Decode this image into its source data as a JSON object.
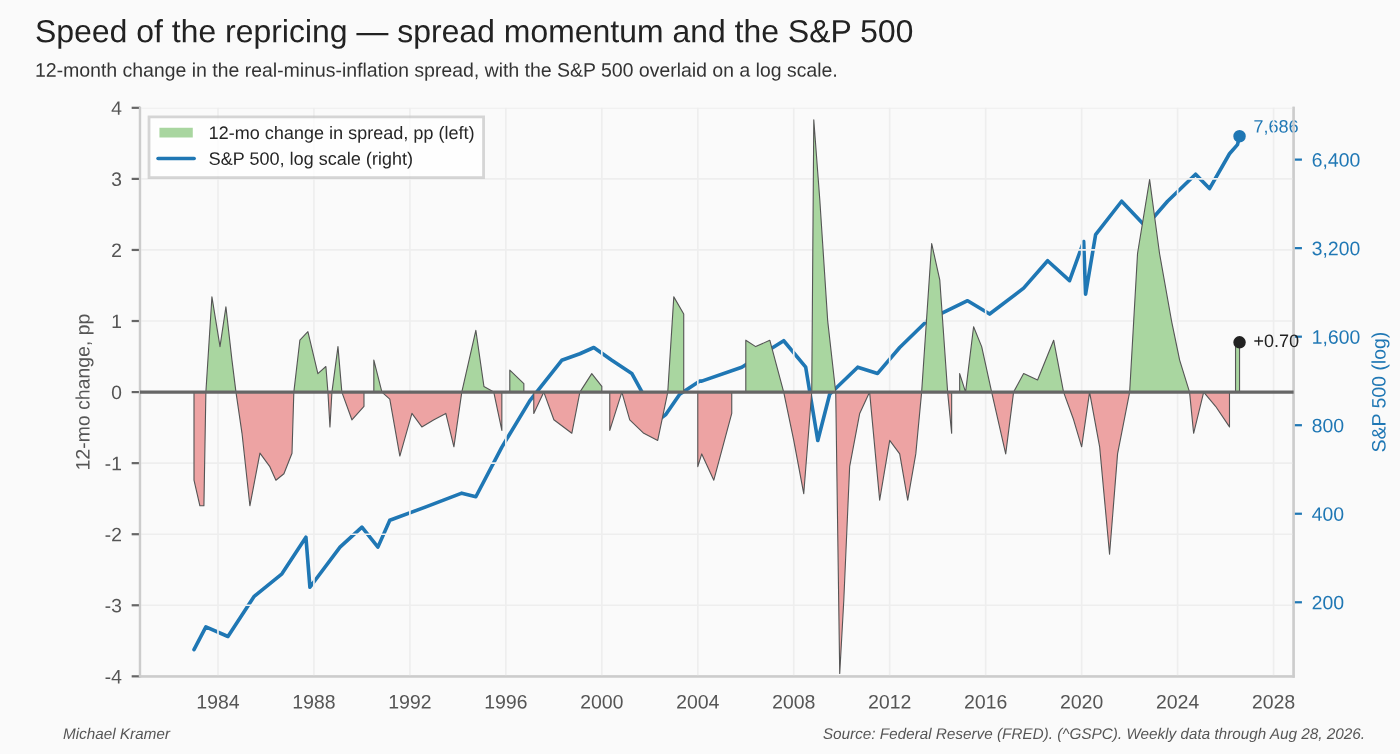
{
  "chart_data": {
    "type": "area",
    "title": "Speed of the repricing — spread momentum and the S&P 500",
    "subtitle": "12-month change in the real-minus-inflation spread, with the S&P 500 overlaid on a log scale.",
    "ylabel": "12-mo change, pp",
    "y2label": "S&P 500 (log)",
    "annotations": [
      "Michael Kramer",
      "Source: Federal Reserve (FRED). (^GSPC). Weekly data through Aug 28, 2026.",
      {
        "text": "+0.70",
        "x": "2026-08",
        "y": 0.7
      }
    ],
    "x": [
      "1983-01",
      "1983-04",
      "1983-06",
      "1983-07",
      "1983-10",
      "1984-02",
      "1984-05",
      "1984-08",
      "1984-10",
      "1985-01",
      "1985-05",
      "1985-10",
      "1986-03",
      "1986-06",
      "1986-10",
      "1987-02",
      "1987-03",
      "1987-06",
      "1987-10",
      "1988-03",
      "1988-07",
      "1988-08",
      "1988-09",
      "1988-10",
      "1989-01",
      "1989-03",
      "1989-08",
      "1990-02",
      "1990-07",
      "1990-11",
      "1991-03",
      "1991-08",
      "1992-02",
      "1992-07",
      "1993-01",
      "1993-07",
      "1993-11",
      "1994-03",
      "1994-10",
      "1995-02",
      "1995-07",
      "1995-11",
      "1996-03",
      "1996-10",
      "1997-03",
      "1997-08",
      "1998-01",
      "1998-10",
      "1999-02",
      "1999-08",
      "2000-01",
      "2000-05",
      "2000-11",
      "2001-03",
      "2001-10",
      "2002-05",
      "2002-10",
      "2003-01",
      "2003-06",
      "2004-01",
      "2004-03",
      "2004-09",
      "2005-06",
      "2006-01",
      "2006-06",
      "2007-01",
      "2007-08",
      "2008-01",
      "2008-06",
      "2008-10",
      "2008-11",
      "2009-02",
      "2009-06",
      "2009-10",
      "2009-12",
      "2010-02",
      "2010-05",
      "2010-10",
      "2011-03",
      "2011-08",
      "2012-01",
      "2012-06",
      "2012-10",
      "2013-02",
      "2013-05",
      "2013-10",
      "2014-02",
      "2014-06",
      "2014-08",
      "2014-12",
      "2015-03",
      "2015-07",
      "2015-11",
      "2016-04",
      "2016-11",
      "2017-03",
      "2017-08",
      "2018-03",
      "2018-11",
      "2019-04",
      "2019-09",
      "2020-01",
      "2020-05",
      "2020-10",
      "2021-03",
      "2021-07",
      "2022-01",
      "2022-05",
      "2022-11",
      "2023-04",
      "2023-10",
      "2024-02",
      "2024-07",
      "2024-09",
      "2025-02",
      "2025-08",
      "2026-03",
      "2026-06",
      "2026-08"
    ],
    "series": [
      {
        "name": "12-mo change in spread, pp (left)",
        "color": "#a9d6a0",
        "values": [
          null,
          null,
          null,
          0,
          1.34,
          0.64,
          1.2,
          0.45,
          0,
          null,
          null,
          null,
          null,
          null,
          null,
          null,
          0,
          0.73,
          0.85,
          0.26,
          0.36,
          0,
          null,
          0,
          0.64,
          0,
          null,
          null,
          0.45,
          0,
          null,
          null,
          null,
          null,
          null,
          null,
          null,
          0,
          0.87,
          0.08,
          0,
          null,
          0.31,
          0.12,
          null,
          null,
          null,
          null,
          0,
          0.26,
          0.08,
          null,
          null,
          null,
          null,
          null,
          0,
          1.34,
          1.1,
          null,
          null,
          null,
          null,
          0.73,
          0.64,
          0.73,
          0,
          null,
          null,
          0,
          3.83,
          2.7,
          1.0,
          0,
          null,
          null,
          null,
          null,
          null,
          null,
          null,
          null,
          null,
          null,
          0,
          2.09,
          1.58,
          0,
          null,
          0.26,
          0,
          0.92,
          0.64,
          0,
          null,
          0,
          0.26,
          0.17,
          0.73,
          0,
          null,
          null,
          null,
          null,
          null,
          null,
          0,
          1.95,
          2.99,
          1.95,
          1.0,
          0.45,
          0,
          null,
          null,
          null,
          null,
          0.64,
          0.7
        ]
      },
      {
        "color": "#eda3a3",
        "values": [
          -1.24,
          -1.6,
          -1.6,
          0,
          null,
          null,
          null,
          null,
          0,
          -0.58,
          -1.6,
          -0.86,
          -1.05,
          -1.24,
          -1.15,
          -0.86,
          0,
          null,
          null,
          null,
          null,
          0,
          -0.49,
          0,
          null,
          0,
          -0.39,
          -0.2,
          null,
          0,
          -0.1,
          -0.9,
          -0.3,
          -0.49,
          -0.39,
          -0.3,
          -0.77,
          0,
          null,
          null,
          0,
          -0.54,
          null,
          null,
          -0.3,
          0,
          -0.39,
          -0.58,
          0,
          null,
          null,
          -0.54,
          0,
          -0.39,
          -0.58,
          -0.68,
          0,
          null,
          null,
          -1.05,
          -0.87,
          -1.24,
          -0.3,
          null,
          null,
          null,
          0,
          -0.68,
          -1.43,
          0,
          null,
          null,
          null,
          0,
          -3.96,
          -2.93,
          -1.05,
          -0.3,
          0,
          -1.52,
          -0.68,
          -0.87,
          -1.52,
          -0.87,
          0,
          null,
          null,
          0,
          -0.58,
          null,
          null,
          null,
          null,
          0,
          -0.87,
          0,
          null,
          null,
          null,
          0,
          -0.39,
          -0.77,
          0,
          -0.77,
          -2.28,
          -0.87,
          0,
          null,
          null,
          null,
          null,
          null,
          0,
          -0.58,
          0,
          -0.2,
          -0.49,
          null,
          null
        ]
      },
      {
        "name": "S&P 500, log scale (right)",
        "type": "line",
        "axis": "y2",
        "color": "#1f77b4",
        "x": [
          "1983-01",
          "1983-07",
          "1984-06",
          "1985-07",
          "1986-09",
          "1987-09",
          "1987-11",
          "1989-02",
          "1990-01",
          "1990-09",
          "1991-03",
          "1992-09",
          "1994-03",
          "1994-10",
          "1995-11",
          "1997-01",
          "1998-05",
          "1999-02",
          "1999-09",
          "2000-06",
          "2001-04",
          "2002-05",
          "2002-09",
          "2003-04",
          "2004-02",
          "2004-03",
          "2005-11",
          "2007-08",
          "2008-07",
          "2009-01",
          "2009-07",
          "2010-09",
          "2011-07",
          "2012-06",
          "2013-08",
          "2015-04",
          "2016-03",
          "2017-08",
          "2018-08",
          "2019-07",
          "2020-02",
          "2020-03",
          "2020-08",
          "2021-09",
          "2022-09",
          "2023-08",
          "2024-10",
          "2025-05",
          "2026-03",
          "2026-07",
          "2026-08"
        ],
        "values": [
          138,
          165,
          153,
          209,
          250,
          333,
          225,
          308,
          360,
          308,
          380,
          422,
          470,
          457,
          674,
          970,
          1330,
          1400,
          1470,
          1330,
          1200,
          830,
          870,
          1020,
          1130,
          1130,
          1260,
          1550,
          1260,
          710,
          1020,
          1260,
          1200,
          1470,
          1820,
          2120,
          1910,
          2340,
          2900,
          2480,
          3370,
          2230,
          3560,
          4620,
          3790,
          4620,
          5710,
          5100,
          6700,
          7200,
          7686
        ],
        "value_labels": [
          null,
          null,
          null,
          null,
          null,
          null,
          null,
          null,
          null,
          null,
          null,
          null,
          null,
          null,
          null,
          null,
          null,
          null,
          null,
          null,
          null,
          null,
          null,
          null,
          null,
          null,
          null,
          null,
          null,
          null,
          null,
          null,
          null,
          null,
          null,
          null,
          null,
          null,
          null,
          null,
          null,
          null,
          null,
          null,
          null,
          null,
          null,
          null,
          null,
          null,
          "7,686"
        ]
      }
    ],
    "xlim": [
      "1980-10",
      "2028-11"
    ],
    "xticks": [
      "1984",
      "1988",
      "1992",
      "1996",
      "2000",
      "2004",
      "2008",
      "2012",
      "2016",
      "2020",
      "2024",
      "2028"
    ],
    "ylim": [
      -4,
      4
    ],
    "yticks": [
      -4,
      -3,
      -2,
      -1,
      0,
      1,
      2,
      3,
      4
    ],
    "y2lim": [
      112,
      9600
    ],
    "y2ticks": [
      200,
      400,
      800,
      {
        "value": 1600,
        "label": "1,600"
      },
      {
        "value": 3200,
        "label": "3,200"
      },
      {
        "value": 6400,
        "label": "6,400"
      }
    ],
    "log": "y2",
    "ref_lines": [
      {
        "axis": "y",
        "value": 0,
        "color": "#666666"
      }
    ],
    "grid": true,
    "legend": "top left"
  }
}
